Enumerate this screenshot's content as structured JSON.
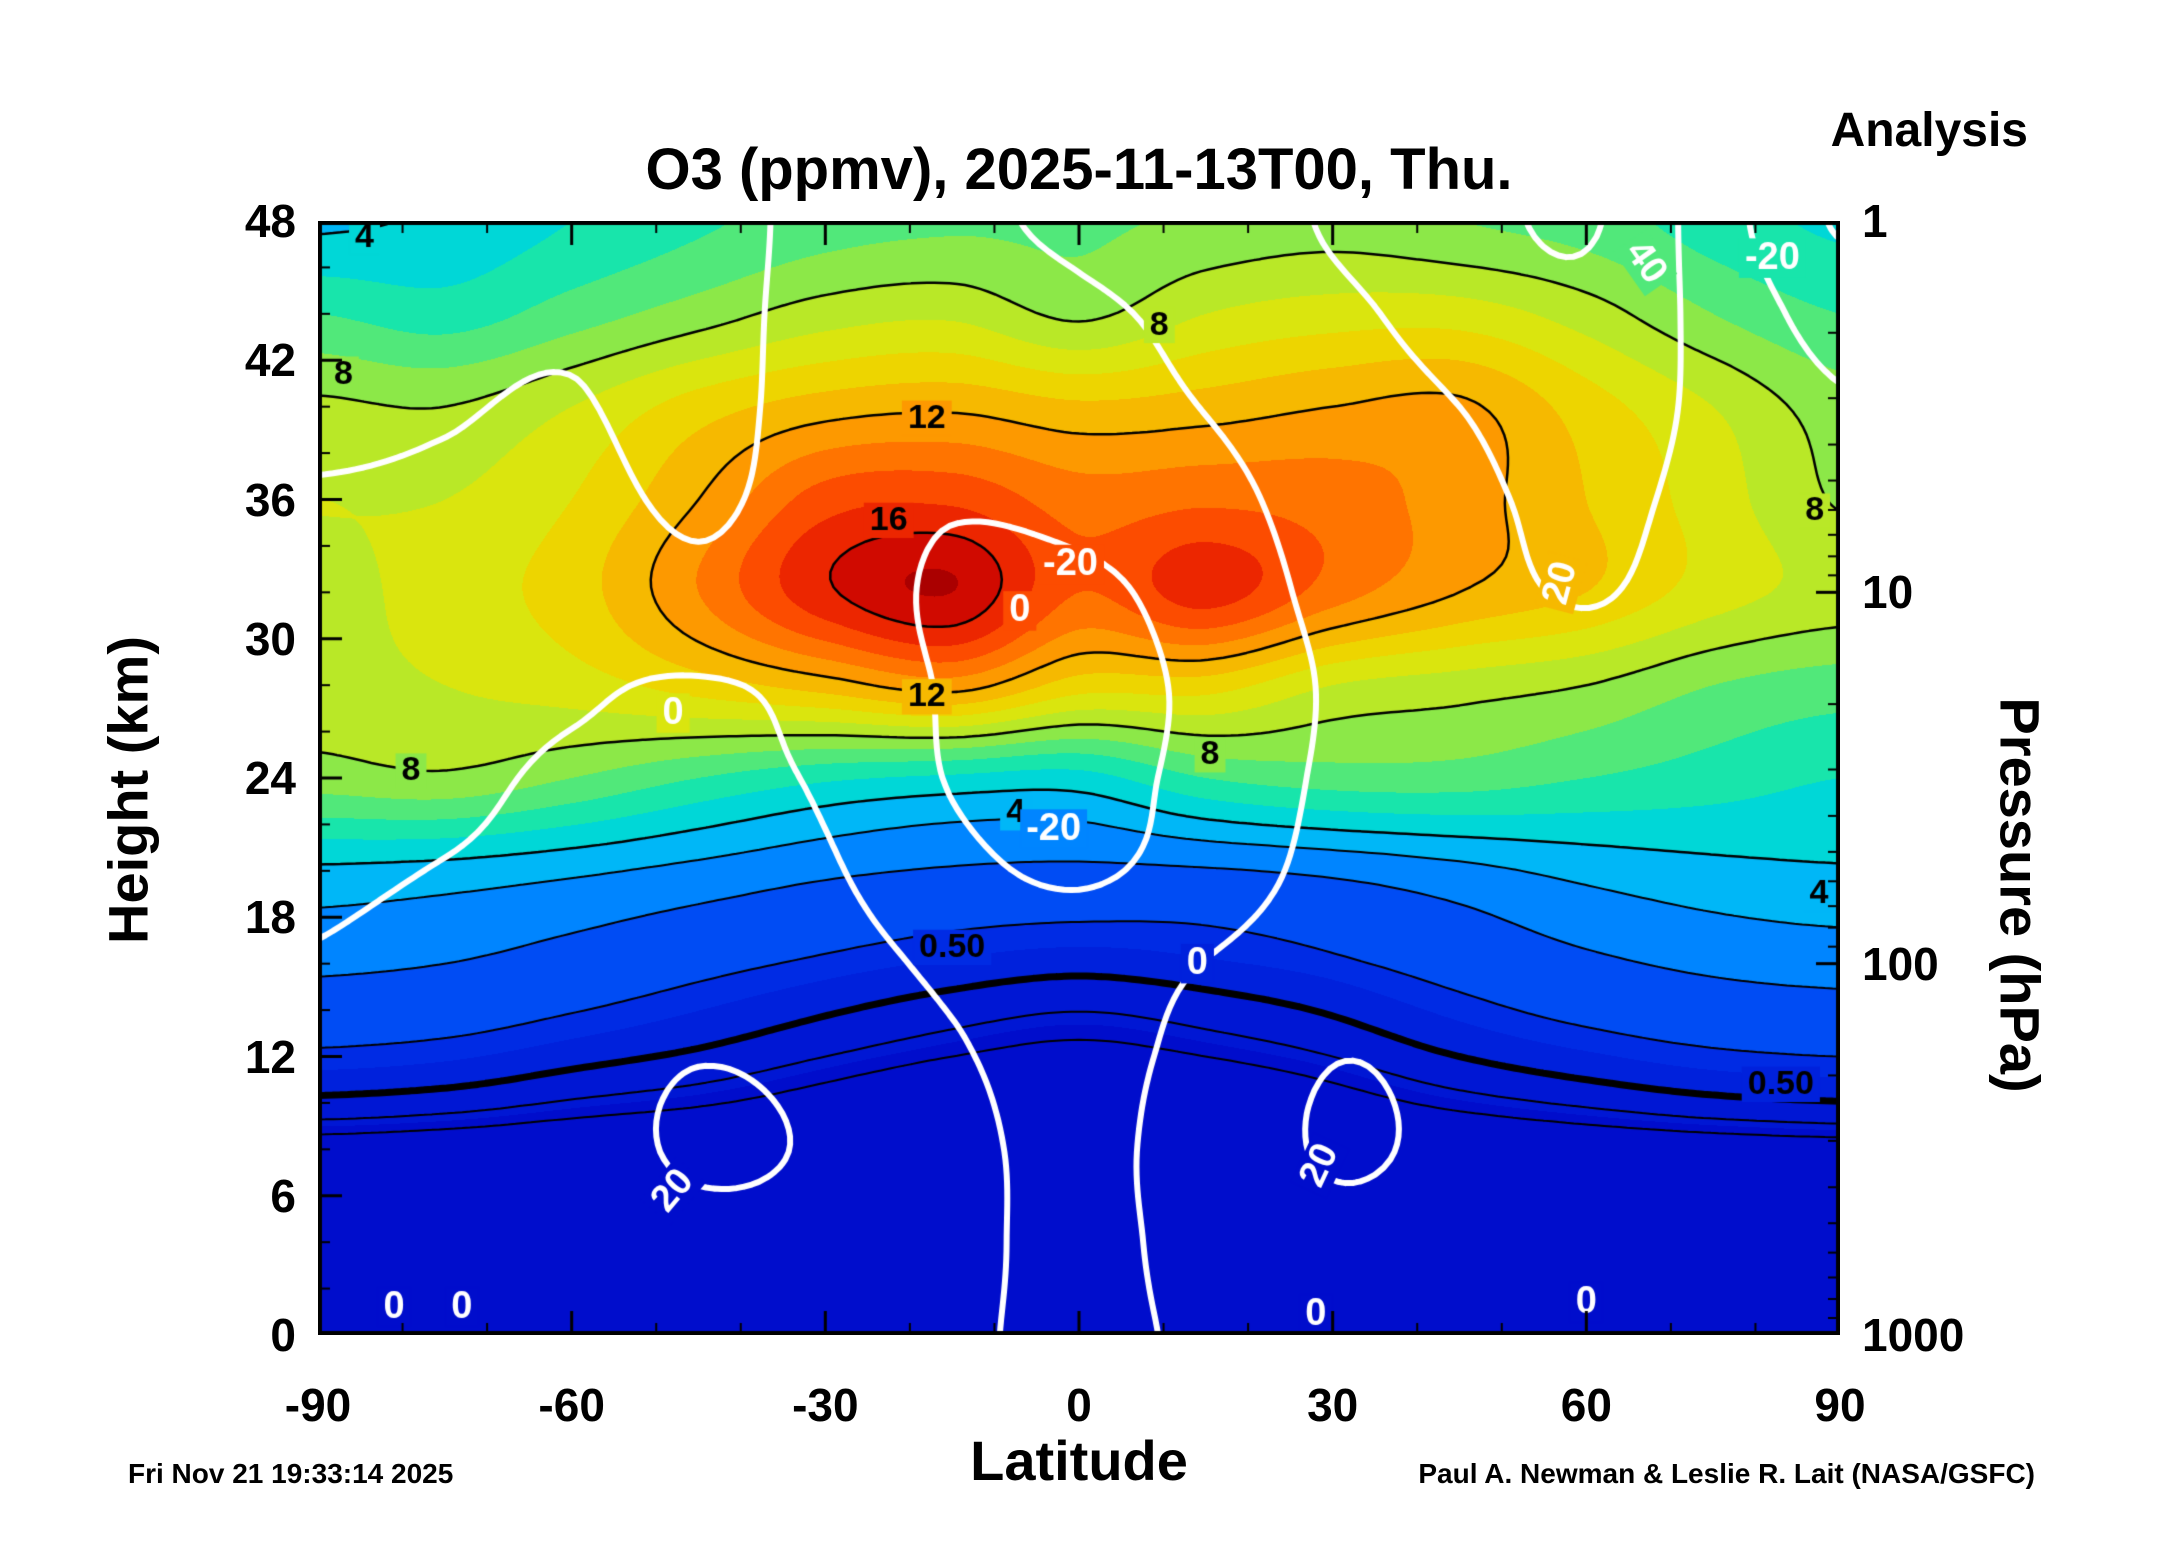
{
  "header": {
    "analysis_label": "Analysis"
  },
  "chart_data": {
    "type": "heatmap",
    "title": "O3 (ppmv), 2025-11-13T00, Thu.",
    "xlabel": "Latitude",
    "ylabel_left": "Height (km)",
    "ylabel_right": "Pressure (hPa)",
    "footer_left": "Fri Nov 21 19:33:14 2025",
    "footer_right": "Paul A. Newman & Leslie R. Lait (NASA/GSFC)",
    "xlim": [
      -90,
      90
    ],
    "ylim": [
      0,
      48
    ],
    "x_ticks": [
      -90,
      -60,
      -30,
      0,
      30,
      60,
      90
    ],
    "x_minor_step": 10,
    "y_ticks_km": [
      0,
      6,
      12,
      18,
      24,
      30,
      36,
      42,
      48
    ],
    "y_minor_step_km": 2,
    "pressure_ticks": [
      1,
      10,
      100,
      1000
    ],
    "o3_grid": {
      "lats": [
        -90,
        -75,
        -60,
        -45,
        -30,
        -15,
        0,
        15,
        30,
        45,
        60,
        75,
        90
      ],
      "heights": [
        0,
        4,
        8,
        12,
        16,
        20,
        24,
        28,
        32,
        36,
        40,
        44,
        48
      ],
      "values": [
        [
          0.03,
          0.03,
          0.03,
          0.03,
          0.03,
          0.03,
          0.03,
          0.03,
          0.03,
          0.03,
          0.03,
          0.03,
          0.03
        ],
        [
          0.05,
          0.05,
          0.04,
          0.04,
          0.04,
          0.04,
          0.04,
          0.04,
          0.04,
          0.04,
          0.05,
          0.05,
          0.05
        ],
        [
          0.12,
          0.1,
          0.08,
          0.07,
          0.06,
          0.05,
          0.05,
          0.05,
          0.06,
          0.07,
          0.09,
          0.11,
          0.13
        ],
        [
          0.9,
          0.8,
          0.6,
          0.45,
          0.3,
          0.2,
          0.15,
          0.2,
          0.3,
          0.5,
          0.7,
          0.9,
          1.0
        ],
        [
          2.2,
          2.0,
          1.6,
          1.2,
          0.9,
          0.7,
          0.6,
          0.7,
          0.9,
          1.3,
          1.8,
          2.2,
          2.4
        ],
        [
          3.8,
          3.6,
          3.2,
          2.7,
          2.2,
          1.9,
          1.8,
          1.9,
          2.2,
          2.7,
          3.3,
          3.7,
          3.9
        ],
        [
          7.5,
          7.8,
          7.0,
          6.0,
          5.2,
          4.8,
          4.6,
          6.0,
          6.5,
          6.5,
          6.0,
          5.5,
          5.0
        ],
        [
          8.5,
          9.0,
          9.5,
          10.5,
          11.5,
          12.5,
          10.5,
          10.5,
          9.0,
          8.5,
          8.0,
          7.0,
          6.5
        ],
        [
          8.6,
          9.5,
          10.5,
          13.0,
          15.8,
          17.0,
          14.0,
          15.5,
          13.5,
          12.0,
          11.0,
          9.5,
          8.6
        ],
        [
          9.0,
          9.0,
          10.0,
          12.0,
          14.5,
          14.8,
          13.5,
          13.8,
          13.5,
          12.5,
          11.0,
          9.5,
          7.9
        ],
        [
          8.2,
          8.0,
          9.0,
          10.5,
          11.5,
          11.8,
          11.2,
          11.5,
          12.0,
          12.2,
          10.5,
          9.0,
          7.5
        ],
        [
          6.0,
          5.5,
          6.5,
          7.5,
          8.5,
          8.8,
          7.8,
          9.0,
          9.5,
          9.5,
          8.5,
          7.0,
          6.0
        ],
        [
          3.8,
          4.2,
          5.0,
          5.8,
          6.5,
          6.8,
          6.8,
          7.2,
          7.5,
          7.0,
          6.5,
          5.5,
          4.8
        ]
      ]
    },
    "wind_grid": {
      "lats": [
        -90,
        -75,
        -60,
        -45,
        -30,
        -15,
        0,
        15,
        30,
        45,
        60,
        75,
        90
      ],
      "heights": [
        0,
        4,
        8,
        12,
        16,
        20,
        24,
        28,
        32,
        36,
        40,
        44,
        48
      ],
      "values": [
        [
          0.5,
          2,
          5,
          8,
          8,
          2,
          -2,
          2,
          8,
          8,
          5,
          2,
          0.5
        ],
        [
          0.5,
          4,
          10,
          16,
          14,
          4,
          -3,
          5,
          15,
          12,
          8,
          3,
          0.5
        ],
        [
          1,
          6,
          14,
          21.5,
          18,
          5,
          -4,
          8,
          21.5,
          16,
          10,
          4,
          1
        ],
        [
          1,
          6,
          13,
          19.5,
          15,
          2,
          -6,
          6,
          19.5,
          15,
          10,
          5,
          2
        ],
        [
          0.5,
          4,
          9,
          12,
          8,
          -4,
          -10,
          0.5,
          12,
          12,
          10,
          6,
          3
        ],
        [
          -2,
          0.5,
          4,
          6,
          2,
          -15,
          -22,
          -12,
          6,
          8,
          9,
          7,
          4
        ],
        [
          -5,
          -3,
          2,
          3,
          -2,
          -21,
          -25,
          -15,
          3,
          8,
          10,
          8,
          5
        ],
        [
          -8,
          -6,
          -2,
          1,
          -5,
          -22,
          -26,
          -16,
          2,
          10,
          14,
          10,
          6
        ],
        [
          -12,
          -10,
          -6,
          -14,
          -8,
          -24,
          -24,
          -12,
          5,
          14,
          21,
          13,
          7
        ],
        [
          -18,
          -16,
          -12,
          -24,
          -10,
          -18,
          -14,
          -6,
          8,
          16,
          24,
          15,
          6
        ],
        [
          -26,
          -22,
          -18,
          -30,
          -8,
          -10,
          -6,
          0.5,
          12,
          20,
          28,
          16,
          2
        ],
        [
          -32,
          -28,
          -24,
          -34,
          -6,
          -4,
          -2,
          4,
          16,
          26,
          34,
          14,
          -8
        ],
        [
          -38,
          -34,
          -30,
          -38,
          -6,
          -2,
          2,
          8,
          22,
          32,
          42,
          10,
          -22
        ]
      ]
    },
    "o3_contours": {
      "solid": [
        4,
        8,
        12,
        16
      ],
      "dashed": [
        0.2,
        0.3,
        1,
        2,
        3
      ],
      "thick": 0.5
    },
    "wind_contours": {
      "levels": [
        -20,
        0,
        20,
        40
      ]
    },
    "colormap": [
      {
        "v": 0,
        "c": "#0008C8"
      },
      {
        "v": 1,
        "c": "#0030E8"
      },
      {
        "v": 2,
        "c": "#0068FF"
      },
      {
        "v": 3,
        "c": "#00A2FF"
      },
      {
        "v": 4,
        "c": "#00CCEE"
      },
      {
        "v": 5,
        "c": "#00E2C0"
      },
      {
        "v": 6,
        "c": "#30E896"
      },
      {
        "v": 7,
        "c": "#72E85E"
      },
      {
        "v": 8,
        "c": "#A6E832"
      },
      {
        "v": 9,
        "c": "#CCE81C"
      },
      {
        "v": 10,
        "c": "#E8E200"
      },
      {
        "v": 11,
        "c": "#F2C800"
      },
      {
        "v": 12,
        "c": "#FAAA00"
      },
      {
        "v": 13,
        "c": "#FF8800"
      },
      {
        "v": 14,
        "c": "#FF6000"
      },
      {
        "v": 15,
        "c": "#F83800"
      },
      {
        "v": 16,
        "c": "#E01400"
      },
      {
        "v": 17,
        "c": "#C00000"
      },
      {
        "v": 18,
        "c": "#940000"
      }
    ],
    "contour_labels": {
      "black": [
        {
          "t": "4",
          "lat": -84.5,
          "h": 47.3
        },
        {
          "t": "8",
          "lat": -87,
          "h": 41.4
        },
        {
          "t": "8",
          "lat": 9.5,
          "h": 43.5
        },
        {
          "t": "12",
          "lat": -18,
          "h": 39.5
        },
        {
          "t": "16",
          "lat": -22.5,
          "h": 35.1
        },
        {
          "t": "12",
          "lat": -18,
          "h": 27.5
        },
        {
          "t": "8",
          "lat": -79,
          "h": 24.3
        },
        {
          "t": "8",
          "lat": 15.5,
          "h": 25.0
        },
        {
          "t": "4",
          "lat": -7.5,
          "h": 22.5
        },
        {
          "t": "8",
          "lat": 87,
          "h": 35.5
        },
        {
          "t": "4",
          "lat": 87.5,
          "h": 19.0
        },
        {
          "t": "0.50",
          "lat": -15,
          "h": 16.7
        },
        {
          "t": "0.50",
          "lat": 83,
          "h": 10.8
        }
      ],
      "white": [
        {
          "t": "40",
          "lat": 67,
          "h": 46.2,
          "rot": 55
        },
        {
          "t": "-20",
          "lat": 82,
          "h": 46.4
        },
        {
          "t": "-20",
          "lat": -1,
          "h": 33.2
        },
        {
          "t": "-20",
          "lat": -3,
          "h": 21.8
        },
        {
          "t": "20",
          "lat": 57,
          "h": 32.4,
          "rot": -75
        },
        {
          "t": "0",
          "lat": -7,
          "h": 31.2
        },
        {
          "t": "0",
          "lat": -48,
          "h": 26.8
        },
        {
          "t": "0",
          "lat": 14,
          "h": 16.0
        },
        {
          "t": "20",
          "lat": -48,
          "h": 6.2,
          "rot": -50
        },
        {
          "t": "20",
          "lat": 28.5,
          "h": 7.3,
          "rot": -65
        },
        {
          "t": "0",
          "lat": -81,
          "h": 1.2
        },
        {
          "t": "0",
          "lat": -73,
          "h": 1.2
        },
        {
          "t": "0",
          "lat": 28,
          "h": 0.9
        },
        {
          "t": "0",
          "lat": 60,
          "h": 1.4
        }
      ]
    }
  }
}
